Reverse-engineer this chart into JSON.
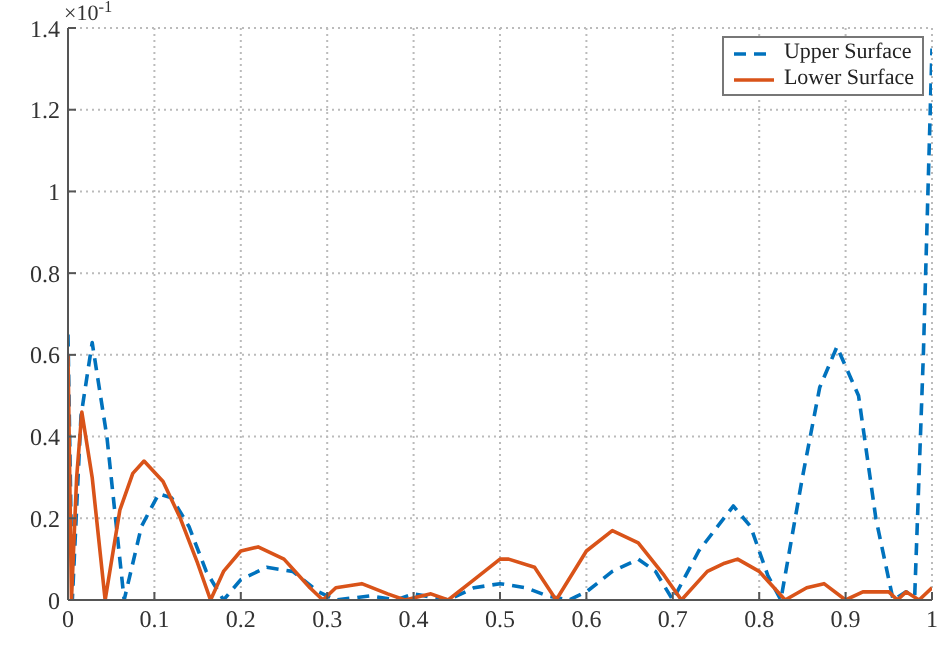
{
  "chart_data": {
    "type": "line",
    "legend": "top right",
    "grid": true,
    "annotations": [
      "×10$^{-1}$"
    ],
    "xlim": [
      0,
      1
    ],
    "xticks": [
      0,
      0.1,
      0.2,
      0.3,
      0.4,
      0.5,
      0.6,
      0.7,
      0.8,
      0.9,
      1
    ],
    "ylim": [
      0,
      1.4
    ],
    "yticks": [
      0,
      0.2,
      0.4,
      0.6,
      0.8,
      1,
      1.2,
      1.4
    ],
    "series": [
      {
        "name": "Upper Surface",
        "color": "#0072bd",
        "line_style": "dashed",
        "x": [
          0,
          0.005,
          0.015,
          0.028,
          0.045,
          0.065,
          0.085,
          0.105,
          0.12,
          0.14,
          0.16,
          0.18,
          0.2,
          0.23,
          0.26,
          0.29,
          0.31,
          0.35,
          0.38,
          0.4,
          0.44,
          0.47,
          0.5,
          0.53,
          0.555,
          0.58,
          0.6,
          0.63,
          0.66,
          0.68,
          0.7,
          0.73,
          0.77,
          0.79,
          0.81,
          0.825,
          0.85,
          0.87,
          0.89,
          0.915,
          0.935,
          0.955,
          0.97,
          0.98,
          0.99,
          1
        ],
        "values": [
          0.65,
          0,
          0.45,
          0.63,
          0.4,
          0,
          0.18,
          0.26,
          0.25,
          0.18,
          0.07,
          0,
          0.05,
          0.08,
          0.07,
          0.02,
          0,
          0.01,
          0,
          0.015,
          0,
          0.03,
          0.04,
          0.03,
          0.01,
          0,
          0.02,
          0.07,
          0.1,
          0.07,
          0,
          0.12,
          0.23,
          0.18,
          0.06,
          0,
          0.3,
          0.52,
          0.62,
          0.5,
          0.2,
          0,
          0.02,
          0.01,
          0.6,
          1.35
        ]
      },
      {
        "name": "Lower Surface",
        "color": "#d95319",
        "line_style": "solid",
        "x": [
          0,
          0.004,
          0.01,
          0.016,
          0.028,
          0.043,
          0.06,
          0.075,
          0.088,
          0.11,
          0.13,
          0.15,
          0.165,
          0.18,
          0.2,
          0.22,
          0.25,
          0.28,
          0.295,
          0.31,
          0.34,
          0.37,
          0.39,
          0.42,
          0.44,
          0.47,
          0.5,
          0.51,
          0.54,
          0.565,
          0.6,
          0.63,
          0.66,
          0.69,
          0.71,
          0.74,
          0.76,
          0.775,
          0.8,
          0.83,
          0.855,
          0.875,
          0.9,
          0.92,
          0.95,
          0.96,
          0.97,
          0.985,
          1
        ],
        "values": [
          0.6,
          0,
          0.3,
          0.46,
          0.3,
          0,
          0.22,
          0.31,
          0.34,
          0.29,
          0.2,
          0.09,
          0,
          0.07,
          0.12,
          0.13,
          0.1,
          0.03,
          0,
          0.03,
          0.04,
          0.015,
          0,
          0.015,
          0,
          0.05,
          0.1,
          0.1,
          0.08,
          0,
          0.12,
          0.17,
          0.14,
          0.06,
          0,
          0.07,
          0.09,
          0.1,
          0.07,
          0,
          0.03,
          0.04,
          0,
          0.02,
          0.02,
          0,
          0.02,
          0,
          0.03
        ]
      }
    ]
  }
}
